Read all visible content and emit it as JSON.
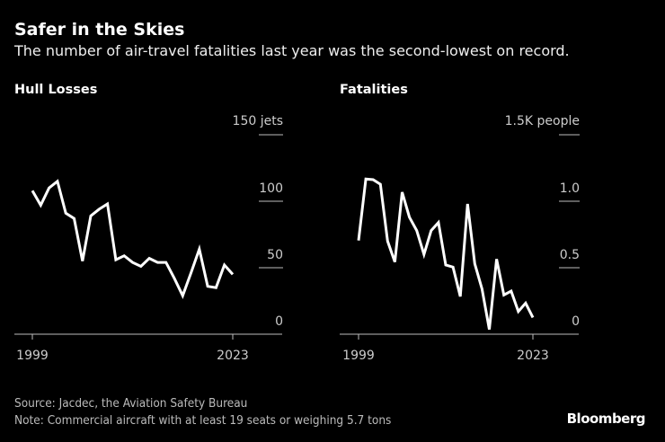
{
  "title": "Safer in the Skies",
  "subtitle": "The number of air-travel fatalities last year was the second-lowest on record.",
  "footer": {
    "source": "Source: Jacdec, the Aviation Safety Bureau",
    "note": "Note: Commercial aircraft with at least 19 seats or weighing 5.7 tons",
    "logo": "Bloomberg"
  },
  "colors": {
    "background": "#000000",
    "line": "#ffffff",
    "text": "#cccccc"
  },
  "chart_data": [
    {
      "type": "line",
      "title": "Hull Losses",
      "unit": "jets",
      "x": [
        1999,
        2000,
        2001,
        2002,
        2003,
        2004,
        2005,
        2006,
        2007,
        2008,
        2009,
        2010,
        2011,
        2012,
        2013,
        2014,
        2015,
        2016,
        2017,
        2018,
        2019,
        2020,
        2021,
        2022,
        2023
      ],
      "values": [
        108,
        97,
        110,
        115,
        91,
        87,
        55,
        89,
        94,
        98,
        56,
        59,
        54,
        51,
        57,
        54,
        54,
        42,
        29,
        46,
        64,
        36,
        35,
        52,
        45
      ],
      "ylim": [
        0,
        150
      ],
      "yticks": [
        0,
        50,
        100,
        150
      ],
      "ytick_labels": [
        "0",
        "50",
        "100",
        "150 jets"
      ],
      "xtick_labels": [
        "1999",
        "2023"
      ],
      "grid": true
    },
    {
      "type": "line",
      "title": "Fatalities",
      "unit": "people",
      "x": [
        1999,
        2000,
        2001,
        2002,
        2003,
        2004,
        2005,
        2006,
        2007,
        2008,
        2009,
        2010,
        2011,
        2012,
        2013,
        2014,
        2015,
        2016,
        2017,
        2018,
        2019,
        2020,
        2021,
        2022,
        2023
      ],
      "values": [
        0.705,
        1.167,
        1.162,
        1.128,
        0.7,
        0.543,
        1.068,
        0.88,
        0.78,
        0.6,
        0.78,
        0.84,
        0.52,
        0.505,
        0.284,
        0.98,
        0.53,
        0.34,
        0.036,
        0.565,
        0.295,
        0.324,
        0.171,
        0.234,
        0.126
      ],
      "ylim": [
        0,
        1.5
      ],
      "yticks": [
        0,
        0.5,
        1.0,
        1.5
      ],
      "ytick_labels": [
        "0",
        "0.5",
        "1.0",
        "1.5K people"
      ],
      "xtick_labels": [
        "1999",
        "2023"
      ],
      "grid": true
    }
  ]
}
